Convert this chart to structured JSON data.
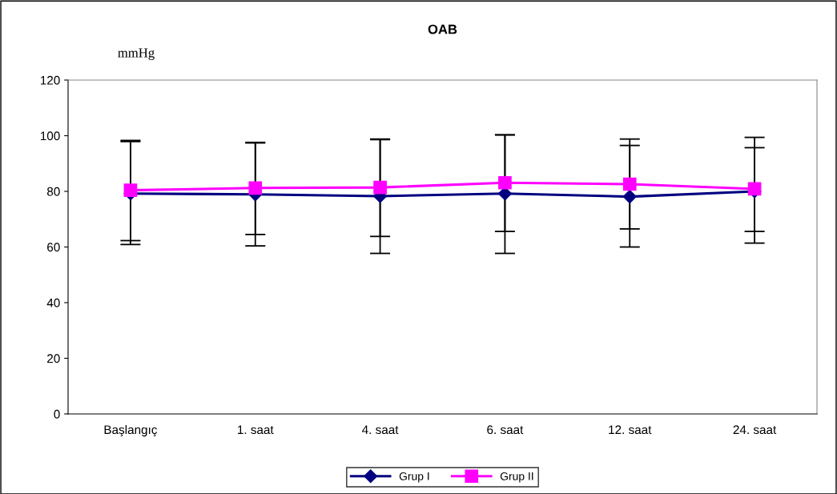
{
  "chart_data": {
    "type": "line",
    "title": "OAB",
    "ylabel": "mmHg",
    "categories": [
      "Başlangıç",
      "1. saat",
      "4. saat",
      "6. saat",
      "12. saat",
      "24. saat"
    ],
    "series": [
      {
        "name": "Grup I",
        "color": "#000080",
        "marker": "diamond",
        "values": [
          79.2,
          78.9,
          78.3,
          79.2,
          78.1,
          80.0
        ],
        "errors": [
          [
            60.9,
            97.9
          ],
          [
            60.4,
            97.4
          ],
          [
            57.7,
            98.6
          ],
          [
            57.7,
            100.3
          ],
          [
            60.0,
            96.5
          ],
          [
            61.4,
            99.4
          ]
        ]
      },
      {
        "name": "Grup II",
        "color": "#ff00ff",
        "marker": "square",
        "values": [
          80.4,
          81.2,
          81.4,
          83.1,
          82.6,
          80.9
        ],
        "errors": [
          [
            62.3,
            98.3
          ],
          [
            64.5,
            97.6
          ],
          [
            63.8,
            98.8
          ],
          [
            65.6,
            100.3
          ],
          [
            66.5,
            98.8
          ],
          [
            65.6,
            95.7
          ]
        ]
      }
    ],
    "ylim": [
      0,
      120
    ],
    "yticks": [
      0,
      20,
      40,
      60,
      80,
      100,
      120
    ],
    "grid": false,
    "legend": "bottom"
  }
}
